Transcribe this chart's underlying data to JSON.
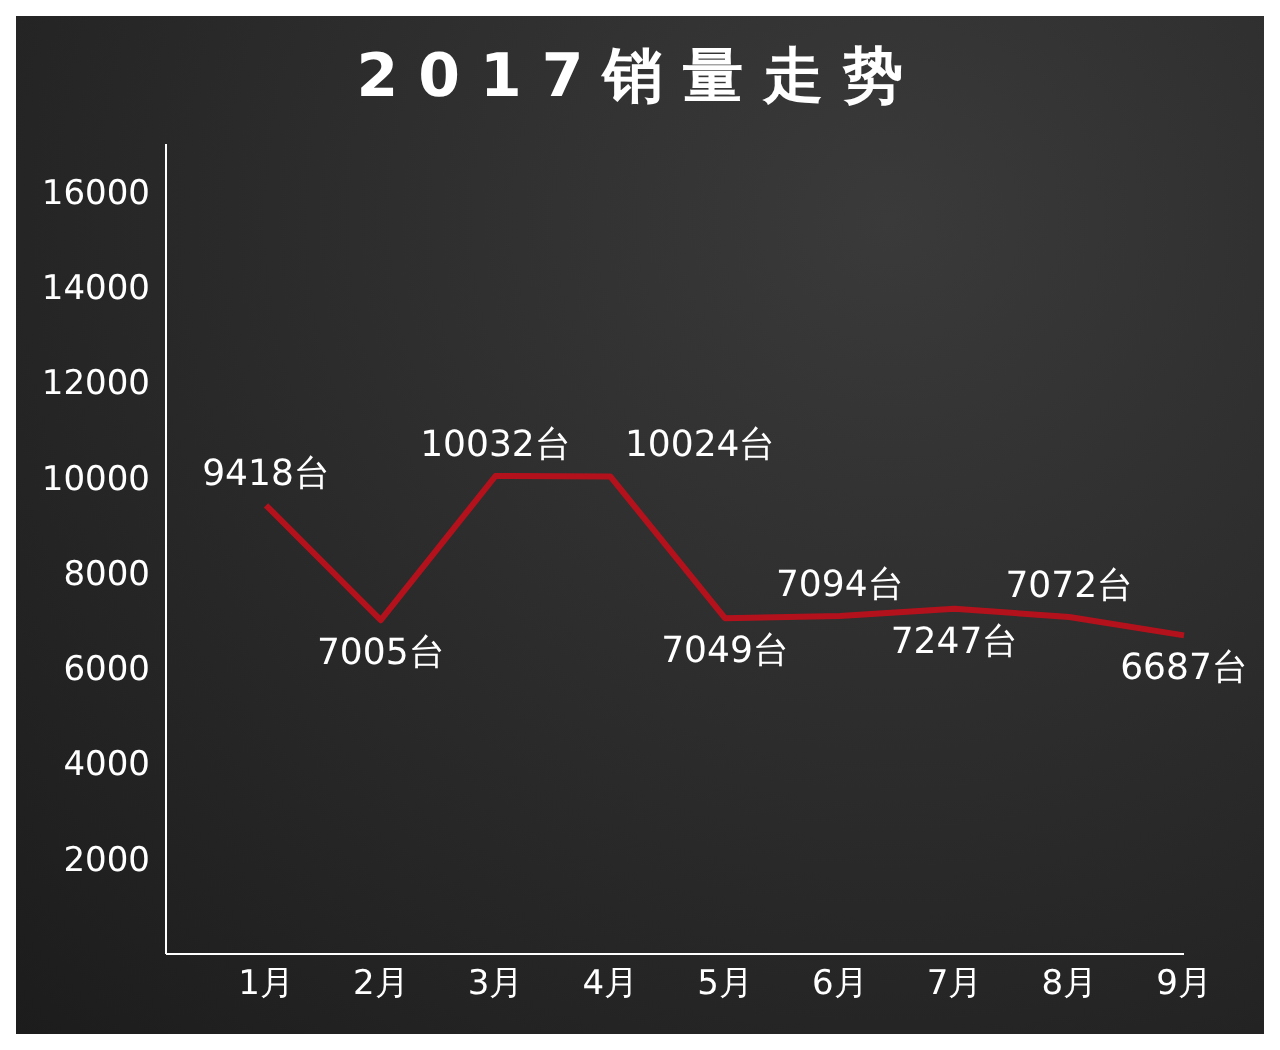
{
  "chart_data": {
    "type": "line",
    "title": "2017销量走势",
    "categories": [
      "1月",
      "2月",
      "3月",
      "4月",
      "5月",
      "6月",
      "7月",
      "8月",
      "9月"
    ],
    "series": [
      {
        "color": "#b3121c",
        "values": [
          9418,
          7005,
          10032,
          10024,
          7049,
          7094,
          7247,
          7072,
          6687
        ],
        "value_labels": [
          "9418台",
          "7005台",
          "10032台",
          "10024台",
          "7049台",
          "7094台",
          "7247台",
          "7072台",
          "6687台"
        ]
      }
    ],
    "ylim": [
      0,
      17000
    ],
    "yticks": [
      2000,
      4000,
      6000,
      8000,
      10000,
      12000,
      14000,
      16000
    ],
    "grid": false,
    "legend": false,
    "marker": "none",
    "line_style": "solid"
  }
}
